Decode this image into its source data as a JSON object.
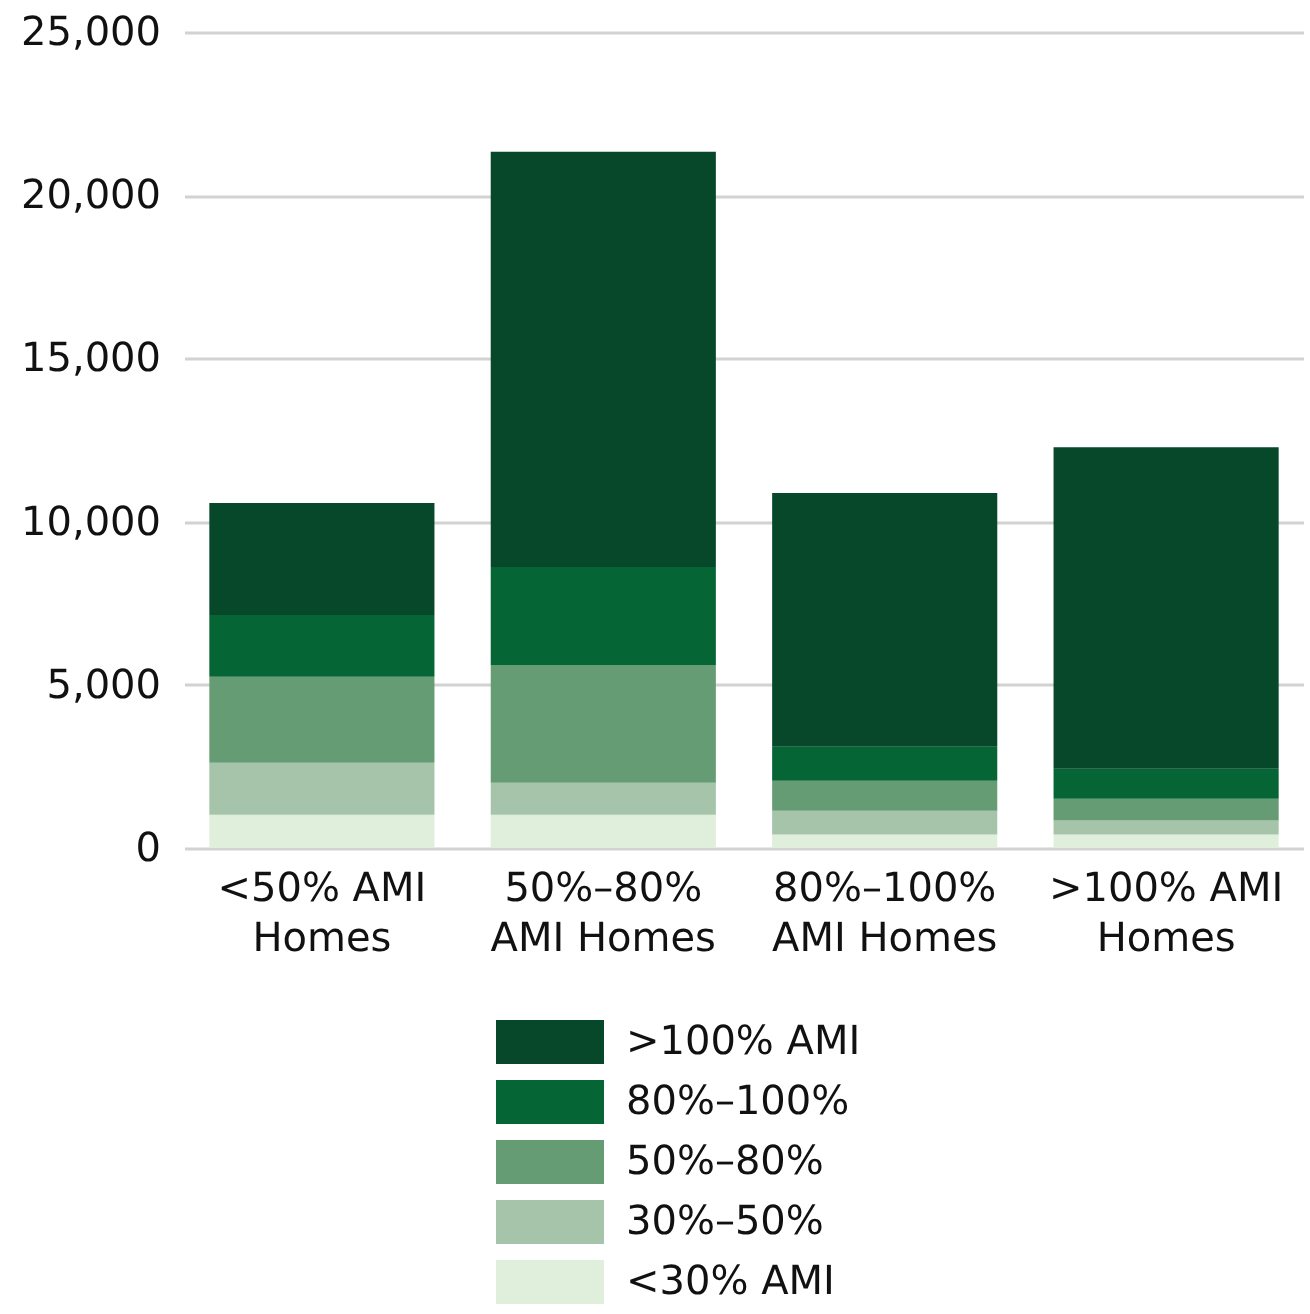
{
  "chart_data": {
    "type": "bar",
    "stacked": true,
    "categories": [
      "<50% AMI Homes",
      "50%–80% AMI Homes",
      "80%–100% AMI Homes",
      ">100% AMI Homes"
    ],
    "series": [
      {
        "name": "<30% AMI",
        "color": "#e0efdc",
        "values": [
          1020,
          1020,
          410,
          410
        ]
      },
      {
        "name": "30%–50%",
        "color": "#a5c4aa",
        "values": [
          1590,
          980,
          730,
          430
        ]
      },
      {
        "name": "50%–80%",
        "color": "#659c74",
        "values": [
          2640,
          3610,
          920,
          670
        ]
      },
      {
        "name": "80%–100%",
        "color": "#066535",
        "values": [
          1890,
          3000,
          1040,
          920
        ]
      },
      {
        "name": ">100% AMI",
        "color": "#07472a",
        "values": [
          3430,
          12720,
          7780,
          9850
        ]
      }
    ],
    "ylim": [
      0,
      25000
    ],
    "yticks": [
      0,
      {
        "value": 5000,
        "label": "5,000"
      },
      {
        "value": 10000,
        "label": "10,000"
      },
      {
        "value": 15000,
        "label": "15,000"
      },
      {
        "value": 20000,
        "label": "20,000"
      },
      {
        "value": 25000,
        "label": "25,000"
      }
    ],
    "grid": "y",
    "legend": "bottom"
  }
}
